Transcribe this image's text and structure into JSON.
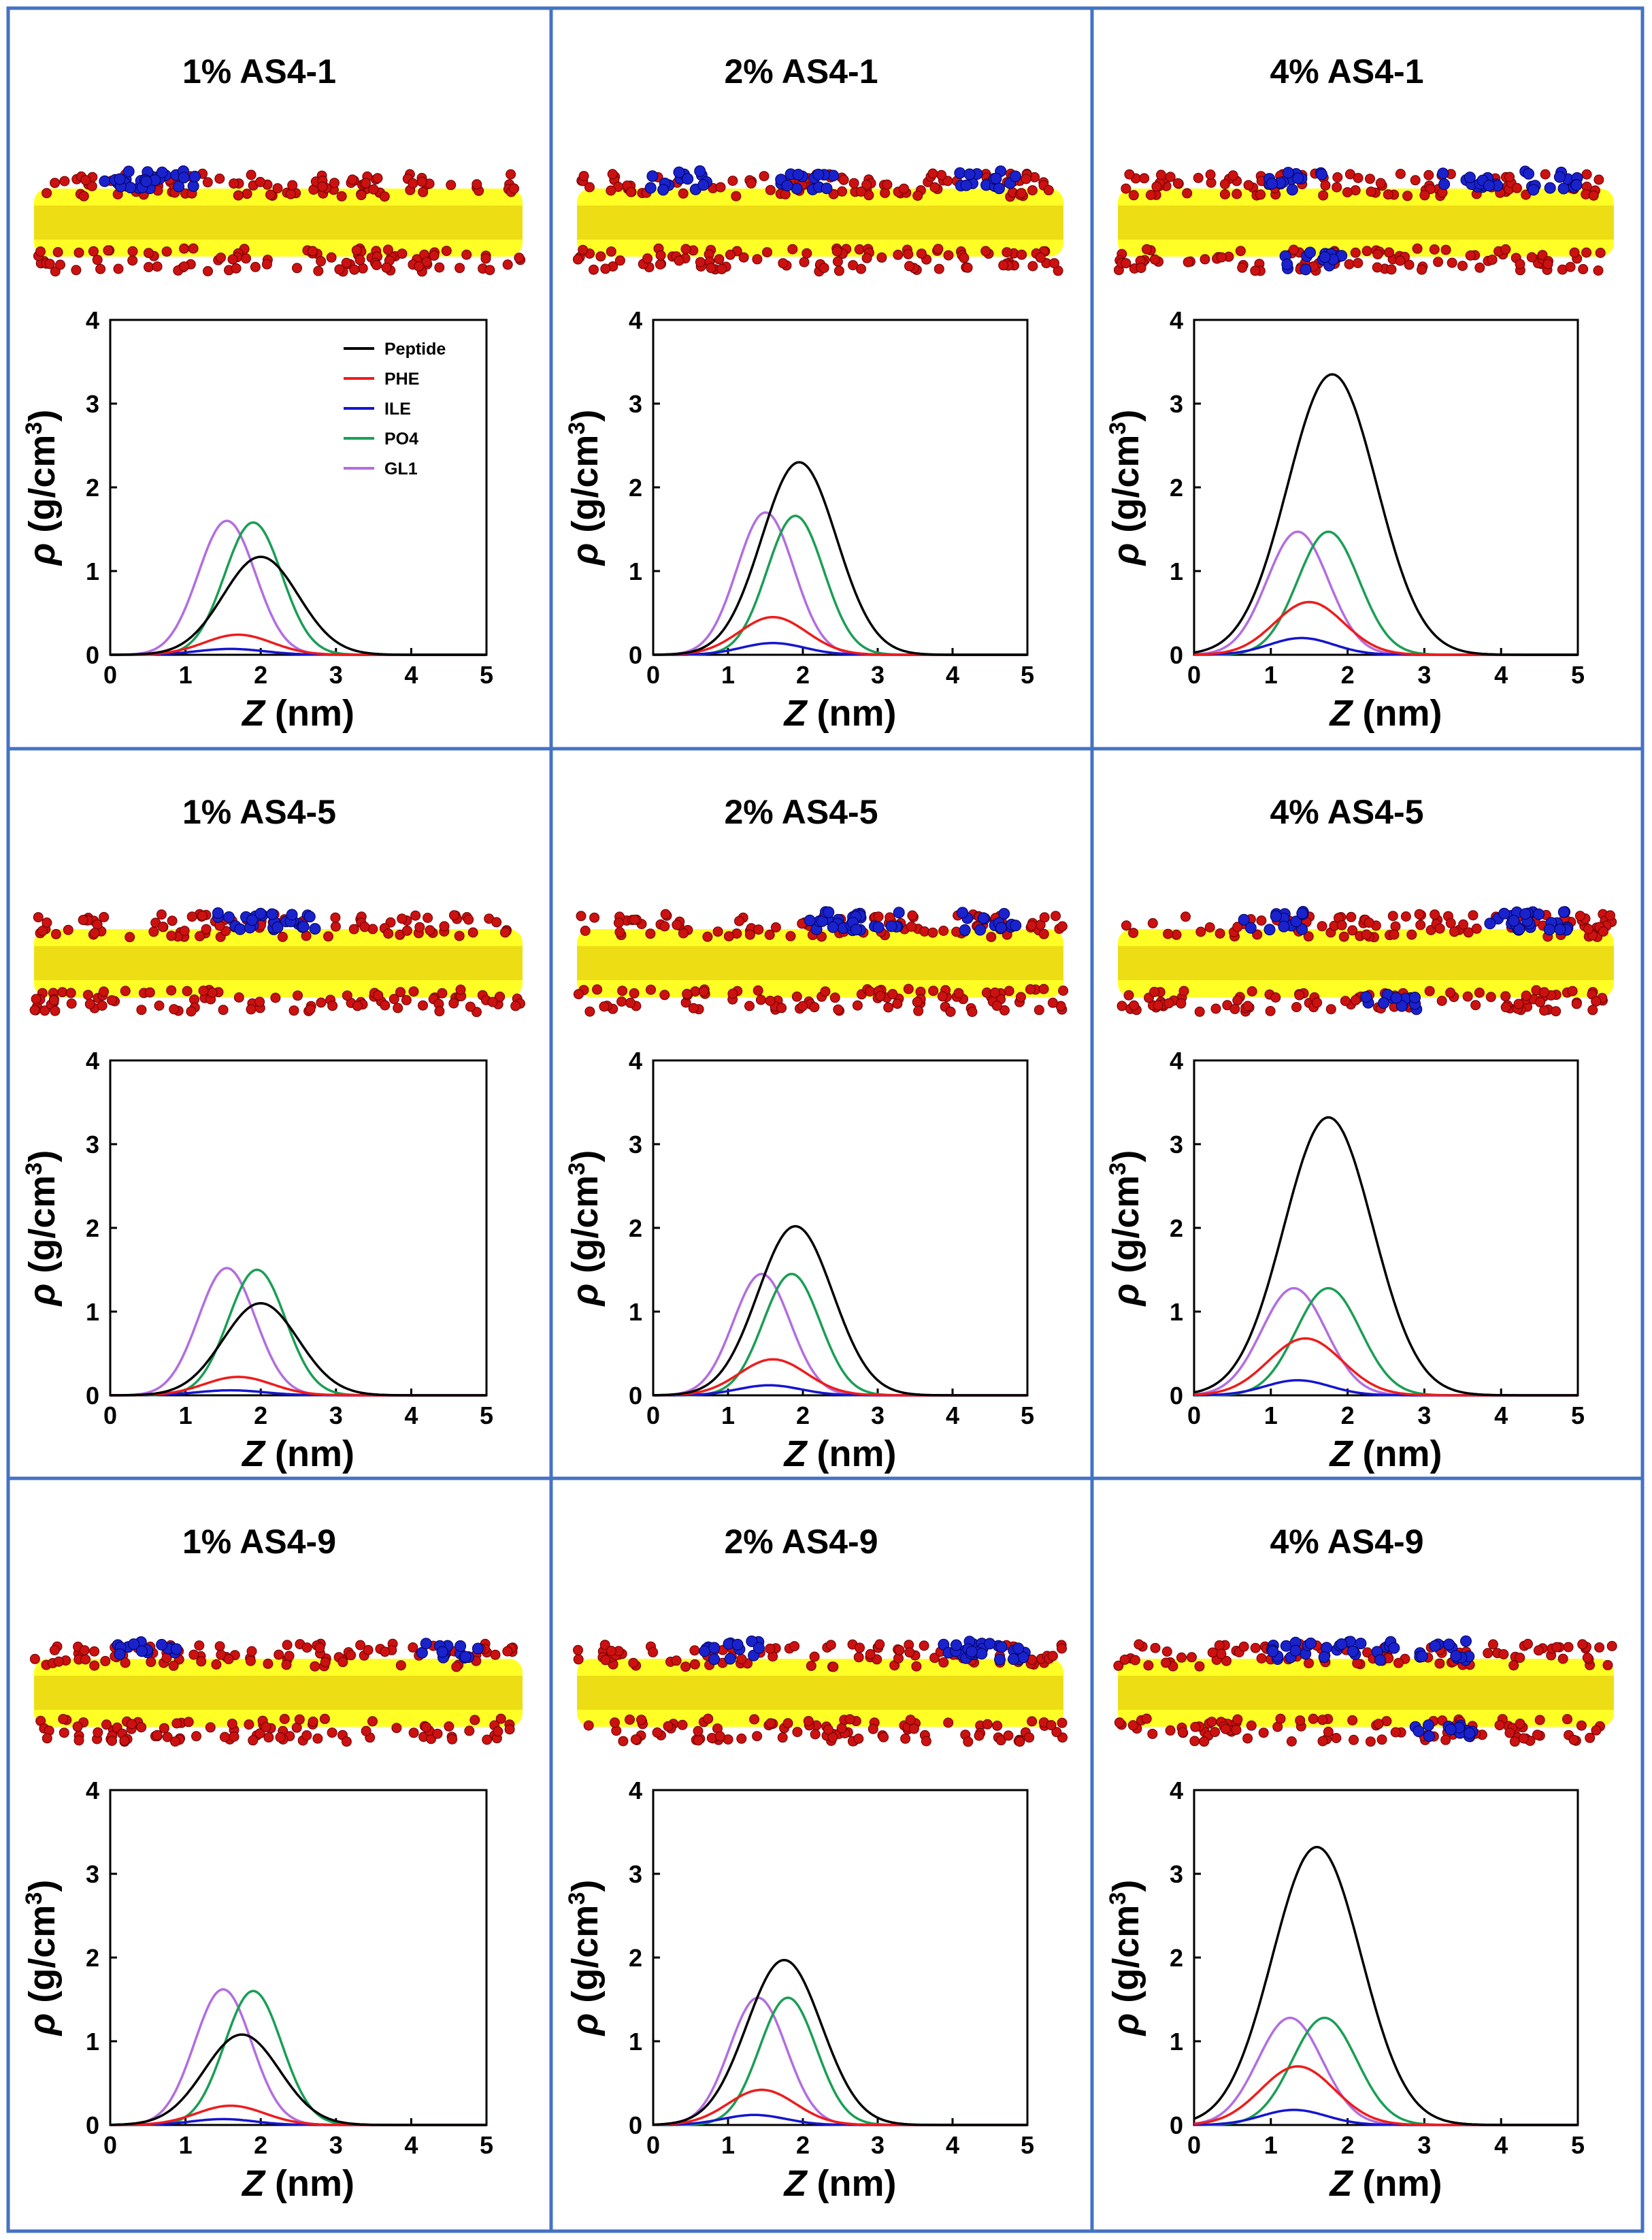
{
  "colors": {
    "panel_border": "#4472c4",
    "bilayer_core": "#ffff00",
    "lipid_headgroup": "#cc1111",
    "peptide": "#1a22cc",
    "series": {
      "Peptide": "#000000",
      "PHE": "#ee1c1c",
      "ILE": "#1515d0",
      "PO4": "#1a9e55",
      "GL1": "#b26ee0"
    }
  },
  "layout": {
    "rows": 3,
    "cols": 3
  },
  "chart_data": [
    {
      "type": "line",
      "title": "1% AS4-1",
      "xlabel": "Z (nm)",
      "ylabel": "ρ (g/cm3)",
      "xlim": [
        0,
        5
      ],
      "ylim": [
        0,
        4
      ],
      "xticks": [
        0,
        1,
        2,
        3,
        4,
        5
      ],
      "yticks": [
        0,
        1,
        2,
        3,
        4
      ],
      "legend": "top-right",
      "series": [
        {
          "name": "Peptide",
          "peak": 1.17,
          "center": 2.0,
          "width": 0.5
        },
        {
          "name": "PHE",
          "peak": 0.24,
          "center": 1.7,
          "width": 0.45
        },
        {
          "name": "ILE",
          "peak": 0.07,
          "center": 1.6,
          "width": 0.45
        },
        {
          "name": "PO4",
          "peak": 1.58,
          "center": 1.9,
          "width": 0.38
        },
        {
          "name": "GL1",
          "peak": 1.6,
          "center": 1.55,
          "width": 0.38
        }
      ]
    },
    {
      "type": "line",
      "title": "2% AS4-1",
      "xlabel": "Z (nm)",
      "ylabel": "ρ (g/cm3)",
      "xlim": [
        0,
        5
      ],
      "ylim": [
        0,
        4
      ],
      "xticks": [
        0,
        1,
        2,
        3,
        4,
        5
      ],
      "yticks": [
        0,
        1,
        2,
        3,
        4
      ],
      "legend": "none",
      "series": [
        {
          "name": "Peptide",
          "peak": 2.3,
          "center": 1.95,
          "width": 0.5
        },
        {
          "name": "PHE",
          "peak": 0.45,
          "center": 1.6,
          "width": 0.45
        },
        {
          "name": "ILE",
          "peak": 0.14,
          "center": 1.6,
          "width": 0.42
        },
        {
          "name": "PO4",
          "peak": 1.66,
          "center": 1.9,
          "width": 0.38
        },
        {
          "name": "GL1",
          "peak": 1.7,
          "center": 1.5,
          "width": 0.38
        }
      ]
    },
    {
      "type": "line",
      "title": "4% AS4-1",
      "xlabel": "Z (nm)",
      "ylabel": "ρ (g/cm3)",
      "xlim": [
        0,
        5
      ],
      "ylim": [
        0,
        4
      ],
      "xticks": [
        0,
        1,
        2,
        3,
        4,
        5
      ],
      "yticks": [
        0,
        1,
        2,
        3,
        4
      ],
      "legend": "none",
      "series": [
        {
          "name": "Peptide",
          "peak": 3.35,
          "center": 1.8,
          "width": 0.58
        },
        {
          "name": "PHE",
          "peak": 0.63,
          "center": 1.5,
          "width": 0.45
        },
        {
          "name": "ILE",
          "peak": 0.2,
          "center": 1.4,
          "width": 0.42
        },
        {
          "name": "PO4",
          "peak": 1.47,
          "center": 1.75,
          "width": 0.4
        },
        {
          "name": "GL1",
          "peak": 1.47,
          "center": 1.35,
          "width": 0.4
        }
      ]
    },
    {
      "type": "line",
      "title": "1% AS4-5",
      "xlabel": "Z (nm)",
      "ylabel": "ρ (g/cm3)",
      "xlim": [
        0,
        5
      ],
      "ylim": [
        0,
        4
      ],
      "xticks": [
        0,
        1,
        2,
        3,
        4,
        5
      ],
      "yticks": [
        0,
        1,
        2,
        3,
        4
      ],
      "legend": "none",
      "series": [
        {
          "name": "Peptide",
          "peak": 1.1,
          "center": 2.0,
          "width": 0.5
        },
        {
          "name": "PHE",
          "peak": 0.22,
          "center": 1.7,
          "width": 0.45
        },
        {
          "name": "ILE",
          "peak": 0.06,
          "center": 1.6,
          "width": 0.45
        },
        {
          "name": "PO4",
          "peak": 1.5,
          "center": 1.95,
          "width": 0.38
        },
        {
          "name": "GL1",
          "peak": 1.52,
          "center": 1.55,
          "width": 0.38
        }
      ]
    },
    {
      "type": "line",
      "title": "2% AS4-5",
      "xlabel": "Z (nm)",
      "ylabel": "ρ (g/cm3)",
      "xlim": [
        0,
        5
      ],
      "ylim": [
        0,
        4
      ],
      "xticks": [
        0,
        1,
        2,
        3,
        4,
        5
      ],
      "yticks": [
        0,
        1,
        2,
        3,
        4
      ],
      "legend": "none",
      "series": [
        {
          "name": "Peptide",
          "peak": 2.02,
          "center": 1.9,
          "width": 0.5
        },
        {
          "name": "PHE",
          "peak": 0.43,
          "center": 1.6,
          "width": 0.45
        },
        {
          "name": "ILE",
          "peak": 0.12,
          "center": 1.55,
          "width": 0.42
        },
        {
          "name": "PO4",
          "peak": 1.45,
          "center": 1.85,
          "width": 0.38
        },
        {
          "name": "GL1",
          "peak": 1.45,
          "center": 1.45,
          "width": 0.38
        }
      ]
    },
    {
      "type": "line",
      "title": "4% AS4-5",
      "xlabel": "Z (nm)",
      "ylabel": "ρ (g/cm3)",
      "xlim": [
        0,
        5
      ],
      "ylim": [
        0,
        4
      ],
      "xticks": [
        0,
        1,
        2,
        3,
        4,
        5
      ],
      "yticks": [
        0,
        1,
        2,
        3,
        4
      ],
      "legend": "none",
      "series": [
        {
          "name": "Peptide",
          "peak": 3.32,
          "center": 1.75,
          "width": 0.58
        },
        {
          "name": "PHE",
          "peak": 0.68,
          "center": 1.45,
          "width": 0.48
        },
        {
          "name": "ILE",
          "peak": 0.18,
          "center": 1.35,
          "width": 0.42
        },
        {
          "name": "PO4",
          "peak": 1.28,
          "center": 1.75,
          "width": 0.42
        },
        {
          "name": "GL1",
          "peak": 1.28,
          "center": 1.3,
          "width": 0.42
        }
      ]
    },
    {
      "type": "line",
      "title": "1% AS4-9",
      "xlabel": "Z (nm)",
      "ylabel": "ρ (g/cm3)",
      "xlim": [
        0,
        5
      ],
      "ylim": [
        0,
        4
      ],
      "xticks": [
        0,
        1,
        2,
        3,
        4,
        5
      ],
      "yticks": [
        0,
        1,
        2,
        3,
        4
      ],
      "legend": "none",
      "series": [
        {
          "name": "Peptide",
          "peak": 1.08,
          "center": 1.75,
          "width": 0.5
        },
        {
          "name": "PHE",
          "peak": 0.23,
          "center": 1.6,
          "width": 0.45
        },
        {
          "name": "ILE",
          "peak": 0.07,
          "center": 1.5,
          "width": 0.42
        },
        {
          "name": "PO4",
          "peak": 1.6,
          "center": 1.9,
          "width": 0.38
        },
        {
          "name": "GL1",
          "peak": 1.62,
          "center": 1.5,
          "width": 0.38
        }
      ]
    },
    {
      "type": "line",
      "title": "2% AS4-9",
      "xlabel": "Z (nm)",
      "ylabel": "ρ (g/cm3)",
      "xlim": [
        0,
        5
      ],
      "ylim": [
        0,
        4
      ],
      "xticks": [
        0,
        1,
        2,
        3,
        4,
        5
      ],
      "yticks": [
        0,
        1,
        2,
        3,
        4
      ],
      "legend": "none",
      "series": [
        {
          "name": "Peptide",
          "peak": 1.97,
          "center": 1.75,
          "width": 0.5
        },
        {
          "name": "PHE",
          "peak": 0.42,
          "center": 1.45,
          "width": 0.45
        },
        {
          "name": "ILE",
          "peak": 0.12,
          "center": 1.35,
          "width": 0.42
        },
        {
          "name": "PO4",
          "peak": 1.52,
          "center": 1.8,
          "width": 0.38
        },
        {
          "name": "GL1",
          "peak": 1.52,
          "center": 1.4,
          "width": 0.38
        }
      ]
    },
    {
      "type": "line",
      "title": "4% AS4-9",
      "xlabel": "Z (nm)",
      "ylabel": "ρ (g/cm3)",
      "xlim": [
        0,
        5
      ],
      "ylim": [
        0,
        4
      ],
      "xticks": [
        0,
        1,
        2,
        3,
        4,
        5
      ],
      "yticks": [
        0,
        1,
        2,
        3,
        4
      ],
      "legend": "none",
      "series": [
        {
          "name": "Peptide",
          "peak": 3.32,
          "center": 1.6,
          "width": 0.58
        },
        {
          "name": "PHE",
          "peak": 0.7,
          "center": 1.35,
          "width": 0.48
        },
        {
          "name": "ILE",
          "peak": 0.18,
          "center": 1.3,
          "width": 0.42
        },
        {
          "name": "PO4",
          "peak": 1.28,
          "center": 1.7,
          "width": 0.42
        },
        {
          "name": "GL1",
          "peak": 1.28,
          "center": 1.25,
          "width": 0.42
        }
      ]
    }
  ]
}
